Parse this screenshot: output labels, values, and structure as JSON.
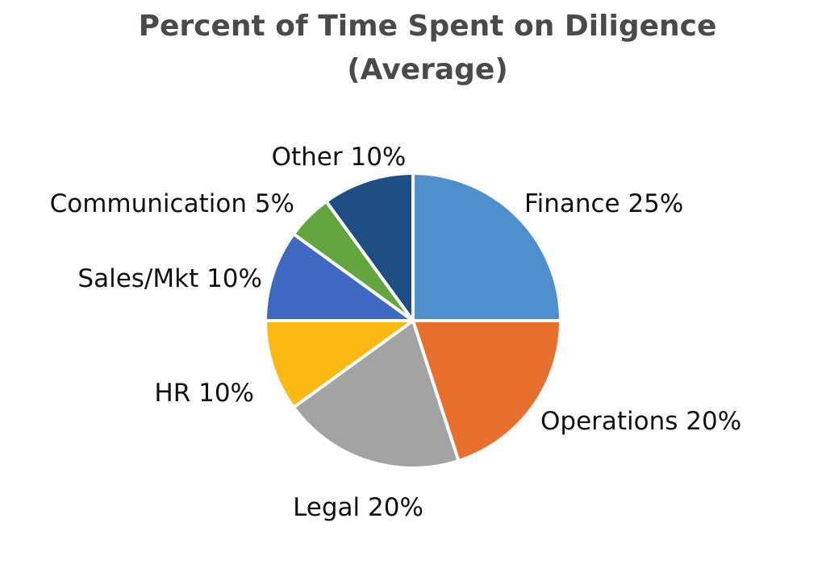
{
  "chart_data": {
    "type": "pie",
    "title": "Percent of Time Spent on Diligence",
    "subtitle": "(Average)",
    "slices": [
      {
        "label": "Finance 25%",
        "value": 25,
        "color": "#4f8fce"
      },
      {
        "label": "Operations 20%",
        "value": 20,
        "color": "#e8702e"
      },
      {
        "label": "Legal 20%",
        "value": 20,
        "color": "#a3a3a3"
      },
      {
        "label": "HR 10%",
        "value": 10,
        "color": "#fdb913"
      },
      {
        "label": "Sales/Mkt 10%",
        "value": 10,
        "color": "#3f69c0"
      },
      {
        "label": "Communication 5%",
        "value": 5,
        "color": "#63a640"
      },
      {
        "label": "Other 10%",
        "value": 10,
        "color": "#1f4e82"
      }
    ],
    "start_angle": "12 o'clock",
    "direction": "clockwise",
    "legend": "none",
    "data_labels": "outside"
  }
}
